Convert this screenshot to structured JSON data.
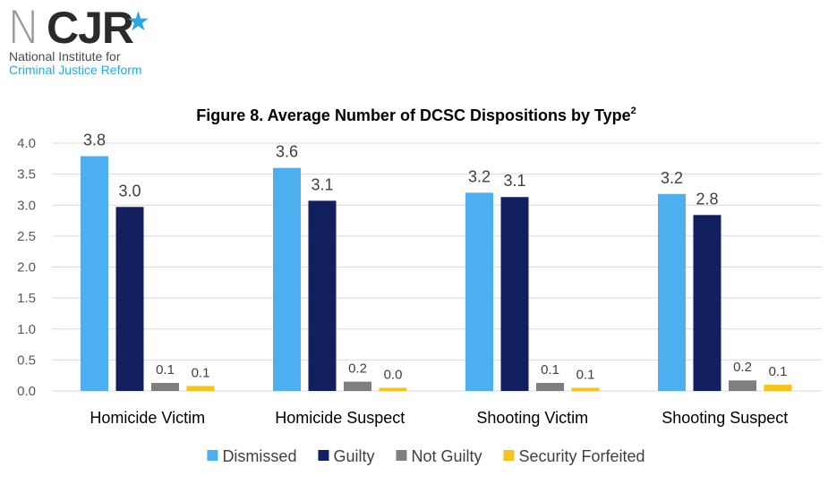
{
  "logo": {
    "left_text": "N",
    "brand_text": "CJR",
    "star_icon": "star-icon",
    "line1": "National Institute for",
    "line2": "Criminal Justice Reform"
  },
  "chart_data": {
    "type": "bar",
    "title": "Figure 8. Average Number of DCSC Dispositions by Type",
    "title_superscript": "2",
    "categories": [
      "Homicide Victim",
      "Homicide Suspect",
      "Shooting Victim",
      "Shooting Suspect"
    ],
    "series": [
      {
        "name": "Dismissed",
        "values": [
          3.79,
          3.6,
          3.2,
          3.18
        ],
        "labels": [
          "3.8",
          "3.6",
          "3.2",
          "3.2"
        ],
        "color": "#4dafef"
      },
      {
        "name": "Guilty",
        "values": [
          2.97,
          3.07,
          3.13,
          2.84
        ],
        "labels": [
          "3.0",
          "3.1",
          "3.1",
          "2.8"
        ],
        "color": "#131f5e"
      },
      {
        "name": "Not Guilty",
        "values": [
          0.13,
          0.15,
          0.13,
          0.17
        ],
        "labels": [
          "0.1",
          "0.2",
          "0.1",
          "0.2"
        ],
        "color": "#7f7f7f"
      },
      {
        "name": "Security Forfeited",
        "values": [
          0.08,
          0.05,
          0.05,
          0.1
        ],
        "labels": [
          "0.1",
          "0.0",
          "0.1",
          "0.1"
        ],
        "color": "#f6c21b"
      }
    ],
    "ylim": [
      0,
      4.0
    ],
    "yticks": [
      0,
      0.5,
      1.0,
      1.5,
      2.0,
      2.5,
      3.0,
      3.5,
      4.0
    ],
    "ytick_labels": [
      "0.0",
      "0.5",
      "1.0",
      "1.5",
      "2.0",
      "2.5",
      "3.0",
      "3.5",
      "4.0"
    ],
    "grid": true,
    "legend_position": "bottom"
  }
}
